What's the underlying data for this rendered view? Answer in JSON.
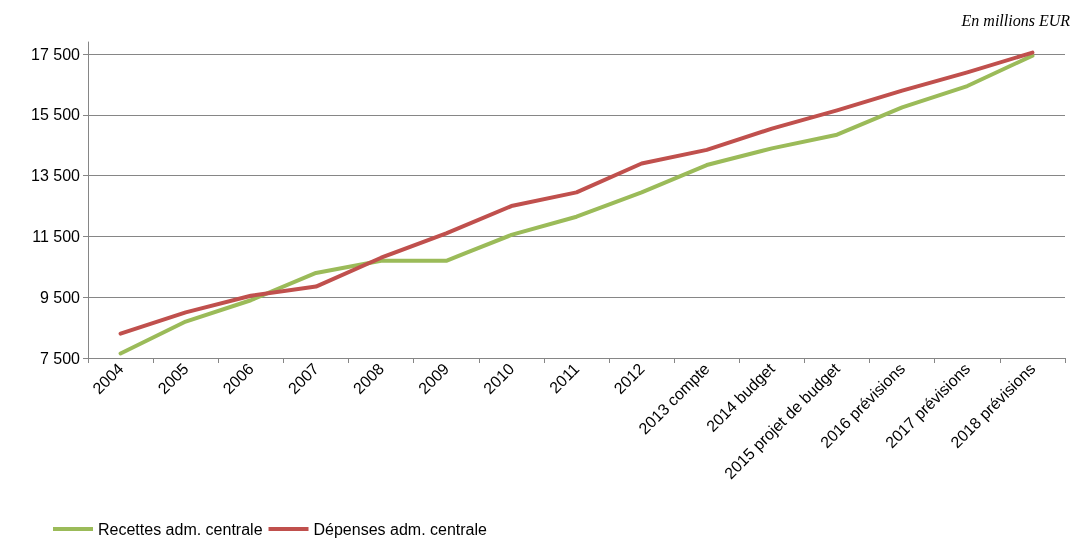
{
  "chart_data": {
    "type": "line",
    "annotations": [
      "En millions EUR"
    ],
    "categories": [
      "2004",
      "2005",
      "2006",
      "2007",
      "2008",
      "2009",
      "2010",
      "2011",
      "2012",
      "2013 compte",
      "2014 budget",
      "2015 projet de budget",
      "2016 prévisions",
      "2017 prévisions",
      "2018 prévisions"
    ],
    "series": [
      {
        "name": "Recettes adm. centrale",
        "color": "#9bbb59",
        "values": [
          7650,
          8700,
          9400,
          10300,
          10700,
          10700,
          11550,
          12150,
          12950,
          13850,
          14400,
          14850,
          15750,
          16450,
          17450
        ]
      },
      {
        "name": "Dépenses adm. centrale",
        "color": "#c0504d",
        "values": [
          8300,
          9000,
          9550,
          9850,
          10800,
          11600,
          12500,
          12950,
          13900,
          14350,
          15050,
          15650,
          16300,
          16900,
          17550
        ]
      }
    ],
    "ylim": [
      7500,
      17900
    ],
    "yticks": [
      {
        "value": 7500,
        "label": "7 500"
      },
      {
        "value": 9500,
        "label": "9 500"
      },
      {
        "value": 11500,
        "label": "11 500"
      },
      {
        "value": 13500,
        "label": "13 500"
      },
      {
        "value": 15500,
        "label": "15 500"
      },
      {
        "value": 17500,
        "label": "17 500"
      }
    ],
    "grid": "y",
    "legend": "bottom left",
    "marker": "none",
    "line_style": "solid"
  }
}
